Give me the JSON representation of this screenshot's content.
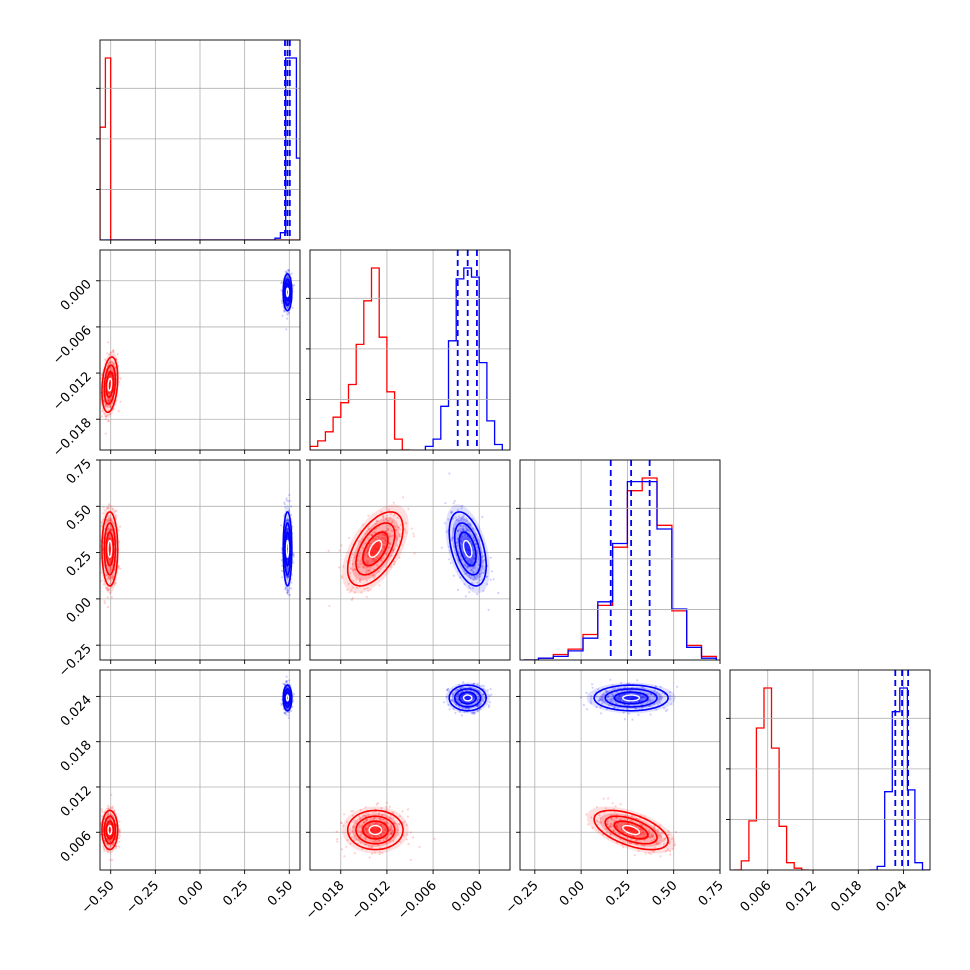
{
  "colors": {
    "red": "#ff0000",
    "blue": "#0000ff",
    "grid": "#b0b0b0"
  },
  "chart_data": {
    "type": "corner",
    "parameters": [
      {
        "range": [
          -0.56,
          0.56
        ],
        "ticks": [
          -0.5,
          -0.25,
          0.0,
          0.25,
          0.5
        ],
        "tick_labels": [
          "−0.50",
          "−0.25",
          "0.00",
          "0.25",
          "0.50"
        ]
      },
      {
        "range": [
          -0.022,
          0.004
        ],
        "ticks": [
          -0.018,
          -0.012,
          -0.006,
          0.0
        ],
        "tick_labels": [
          "−0.018",
          "−0.012",
          "−0.006",
          "0.000"
        ]
      },
      {
        "range": [
          -0.33,
          0.75
        ],
        "ticks": [
          -0.25,
          0.0,
          0.25,
          0.5,
          0.75
        ],
        "tick_labels": [
          "−0.25",
          "0.00",
          "0.25",
          "0.50",
          "0.75"
        ]
      },
      {
        "range": [
          0.001,
          0.0275
        ],
        "ticks": [
          0.006,
          0.012,
          0.018,
          0.024
        ],
        "tick_labels": [
          "0.006",
          "0.012",
          "0.018",
          "0.024"
        ]
      }
    ],
    "series": [
      {
        "color": "red",
        "means": [
          -0.505,
          -0.0135,
          0.27,
          0.0063
        ],
        "sds": [
          0.022,
          0.0018,
          0.1,
          0.0013
        ],
        "correlations": [
          [
            0,
            1,
            0.25
          ],
          [
            0,
            2,
            0.0
          ],
          [
            0,
            3,
            0.0
          ],
          [
            1,
            2,
            0.55
          ],
          [
            1,
            3,
            0.0
          ],
          [
            2,
            3,
            -0.55
          ]
        ],
        "quantile_lines": []
      },
      {
        "color": "blue",
        "means": [
          0.49,
          -0.0015,
          0.27,
          0.0238
        ],
        "sds": [
          0.012,
          0.0012,
          0.1,
          0.00085
        ],
        "correlations": [
          [
            0,
            1,
            0.0
          ],
          [
            0,
            2,
            0.0
          ],
          [
            0,
            3,
            0.0
          ],
          [
            1,
            2,
            -0.45
          ],
          [
            1,
            3,
            0.0
          ],
          [
            2,
            3,
            0.0
          ]
        ],
        "quantile_lines": [
          [
            0.476,
            0.49,
            0.503
          ],
          [
            -0.0028,
            -0.0015,
            -0.0003
          ],
          [
            0.16,
            0.27,
            0.37
          ],
          [
            0.0229,
            0.0238,
            0.0246
          ]
        ]
      }
    ],
    "histograms": [
      {
        "series": [
          {
            "color": "red",
            "bins": [
              -0.56,
              -0.53,
              -0.5,
              -0.47,
              0.45,
              0.48,
              0.51,
              0.54,
              0.56
            ],
            "counts": [
              0.62,
              1.0,
              0.0,
              0.0,
              0,
              0,
              0,
              0
            ]
          },
          {
            "color": "blue",
            "bins": [
              -0.56,
              -0.53,
              -0.5,
              -0.47,
              0.42,
              0.45,
              0.48,
              0.51,
              0.54,
              0.56
            ],
            "counts": [
              0,
              0,
              0,
              0,
              0.01,
              0.04,
              1.0,
              1.0,
              0.45
            ]
          }
        ]
      },
      {
        "series": [
          {
            "color": "red",
            "bins": [
              -0.022,
              -0.021,
              -0.02,
              -0.019,
              -0.018,
              -0.017,
              -0.016,
              -0.015,
              -0.014,
              -0.013,
              -0.012,
              -0.011,
              -0.01,
              -0.009
            ],
            "counts": [
              0.02,
              0.05,
              0.1,
              0.18,
              0.26,
              0.36,
              0.58,
              0.82,
              1.0,
              0.62,
              0.32,
              0.06,
              0.0
            ]
          },
          {
            "color": "blue",
            "bins": [
              -0.007,
              -0.006,
              -0.005,
              -0.004,
              -0.003,
              -0.002,
              -0.001,
              0.0,
              0.001,
              0.002,
              0.003
            ],
            "counts": [
              0.02,
              0.06,
              0.24,
              0.6,
              0.94,
              1.0,
              0.95,
              0.48,
              0.16,
              0.03
            ]
          }
        ]
      },
      {
        "series": [
          {
            "color": "red",
            "bins": [
              -0.31,
              -0.23,
              -0.15,
              -0.07,
              0.01,
              0.09,
              0.17,
              0.25,
              0.33,
              0.41,
              0.49,
              0.57,
              0.65,
              0.73
            ],
            "counts": [
              0.0,
              0.01,
              0.03,
              0.06,
              0.14,
              0.3,
              0.62,
              0.93,
              1.0,
              0.74,
              0.27,
              0.08,
              0.02
            ]
          },
          {
            "color": "blue",
            "bins": [
              -0.31,
              -0.23,
              -0.15,
              -0.07,
              0.01,
              0.09,
              0.17,
              0.25,
              0.33,
              0.41,
              0.49,
              0.57,
              0.65,
              0.73
            ],
            "counts": [
              0.0,
              0.01,
              0.02,
              0.05,
              0.12,
              0.32,
              0.64,
              0.98,
              0.98,
              0.72,
              0.28,
              0.07,
              0.01
            ]
          }
        ]
      },
      {
        "series": [
          {
            "color": "red",
            "bins": [
              0.0015,
              0.0025,
              0.0035,
              0.0045,
              0.0055,
              0.0065,
              0.0075,
              0.0085,
              0.0095,
              0.0105,
              0.0115
            ],
            "counts": [
              0.0,
              0.05,
              0.27,
              0.78,
              1.0,
              0.67,
              0.24,
              0.04,
              0.01,
              0.0
            ]
          },
          {
            "color": "blue",
            "bins": [
              0.0195,
              0.0205,
              0.0215,
              0.0225,
              0.0235,
              0.0245,
              0.0255,
              0.0265,
              0.0275
            ],
            "counts": [
              0.0,
              0.02,
              0.43,
              0.87,
              1.0,
              0.44,
              0.04,
              0.0
            ]
          }
        ]
      }
    ]
  }
}
